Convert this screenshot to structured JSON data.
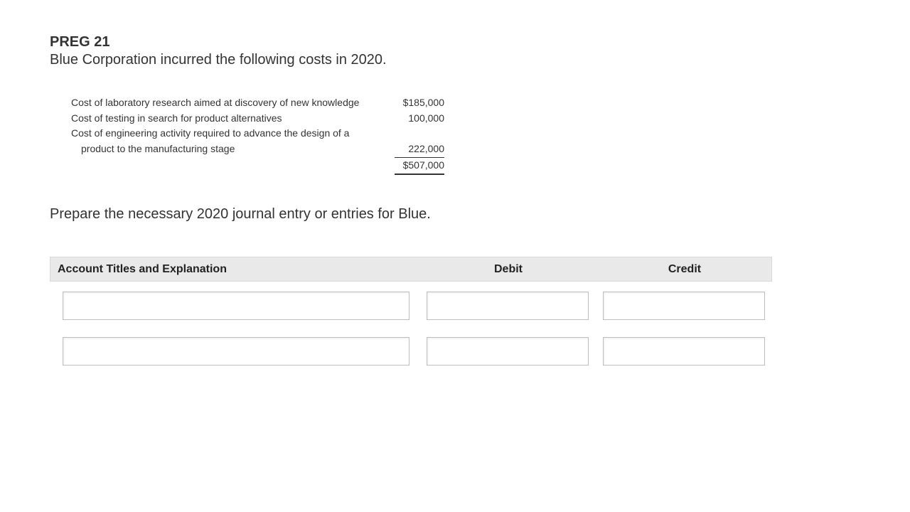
{
  "header": {
    "preg_label": "PREG 21",
    "intro": "Blue Corporation incurred the following costs in 2020."
  },
  "costs": {
    "rows": [
      {
        "label": "Cost of laboratory research aimed at discovery of new knowledge",
        "value": "$185,000"
      },
      {
        "label": "Cost of testing in search for product alternatives",
        "value": "100,000"
      },
      {
        "label": "Cost of engineering activity required to advance the design of a",
        "value": ""
      },
      {
        "label": "product to the manufacturing stage",
        "value": "222,000"
      }
    ],
    "total": "$507,000"
  },
  "instruction": "Prepare the necessary 2020 journal entry or entries for Blue.",
  "journal_entry": {
    "columns": {
      "account": "Account Titles and Explanation",
      "debit": "Debit",
      "credit": "Credit"
    },
    "rows": [
      {
        "account": "",
        "debit": "",
        "credit": ""
      },
      {
        "account": "",
        "debit": "",
        "credit": ""
      }
    ]
  }
}
